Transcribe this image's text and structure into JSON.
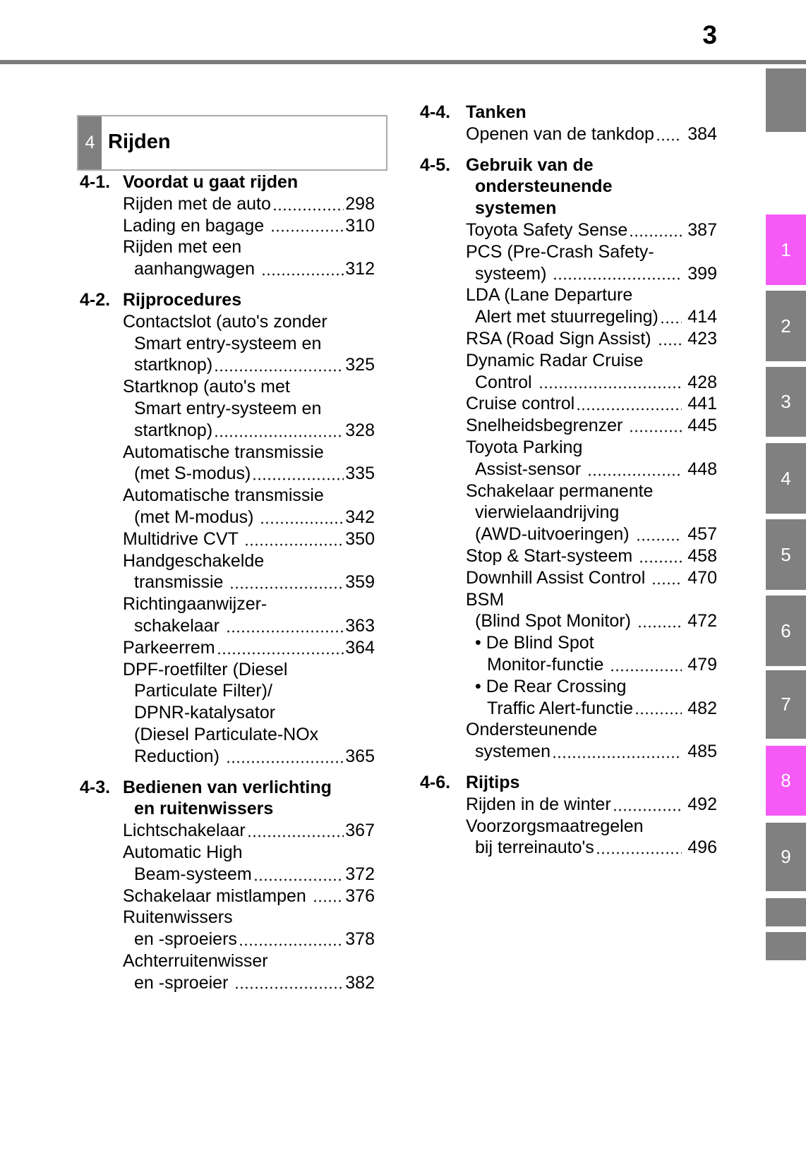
{
  "page": {
    "number": "3"
  },
  "chapter": {
    "number": "4",
    "title": "Rijden"
  },
  "colors": {
    "tab_gray": "#808080",
    "tab_pink": "#f65af6",
    "rule_gray": "#7b7b7b"
  },
  "toc": {
    "left_column": {
      "lines": [
        {
          "type": "header",
          "num": "4-1.",
          "text": "Voordat u gaat rijden"
        },
        {
          "type": "entry",
          "text": "Rijden met de auto",
          "page": "298"
        },
        {
          "type": "entry",
          "text": "Lading en bagage ",
          "page": "310"
        },
        {
          "type": "entry",
          "text": "Rijden met een"
        },
        {
          "type": "wrap",
          "text": "aanhangwagen ",
          "page": "312"
        },
        {
          "type": "header",
          "num": "4-2.",
          "text": "Rijprocedures",
          "gap": true
        },
        {
          "type": "entry",
          "text": "Contactslot (auto's zonder"
        },
        {
          "type": "wrap",
          "text": "Smart entry-systeem en"
        },
        {
          "type": "wrap",
          "text": "startknop)",
          "page": "325"
        },
        {
          "type": "entry",
          "text": "Startknop (auto's met"
        },
        {
          "type": "wrap",
          "text": "Smart entry-systeem en"
        },
        {
          "type": "wrap",
          "text": "startknop)",
          "page": "328"
        },
        {
          "type": "entry",
          "text": "Automatische transmissie"
        },
        {
          "type": "wrap",
          "text": "(met S-modus)",
          "page": "335"
        },
        {
          "type": "entry",
          "text": "Automatische transmissie"
        },
        {
          "type": "wrap",
          "text": "(met M-modus) ",
          "page": "342"
        },
        {
          "type": "entry",
          "text": "Multidrive CVT ",
          "page": "350"
        },
        {
          "type": "entry",
          "text": "Handgeschakelde"
        },
        {
          "type": "wrap",
          "text": "transmissie ",
          "page": "359"
        },
        {
          "type": "entry",
          "text": "Richtingaanwijzer-"
        },
        {
          "type": "wrap",
          "text": "schakelaar ",
          "page": "363"
        },
        {
          "type": "entry",
          "text": "Parkeerrem",
          "page": "364"
        },
        {
          "type": "entry",
          "text": "DPF-roetfilter (Diesel"
        },
        {
          "type": "wrap",
          "text": "Particulate Filter)/"
        },
        {
          "type": "wrap",
          "text": "DPNR-katalysator"
        },
        {
          "type": "wrap",
          "text": "(Diesel Particulate-NOx"
        },
        {
          "type": "wrap",
          "text": "Reduction) ",
          "page": "365"
        },
        {
          "type": "header",
          "num": "4-3.",
          "text": "Bedienen van verlichting",
          "gap": true
        },
        {
          "type": "hwrap",
          "text": "en ruitenwissers"
        },
        {
          "type": "entry",
          "text": "Lichtschakelaar",
          "page": "367"
        },
        {
          "type": "entry",
          "text": "Automatic High"
        },
        {
          "type": "wrap",
          "text": "Beam-systeem",
          "page": "372"
        },
        {
          "type": "entry",
          "text": "Schakelaar mistlampen ",
          "page": "376"
        },
        {
          "type": "entry",
          "text": "Ruitenwissers"
        },
        {
          "type": "wrap",
          "text": "en -sproeiers",
          "page": "378"
        },
        {
          "type": "entry",
          "text": "Achterruitenwisser"
        },
        {
          "type": "wrap",
          "text": "en -sproeier ",
          "page": "382"
        }
      ]
    },
    "right_column": {
      "lines": [
        {
          "type": "header",
          "num": "4-4.",
          "text": "Tanken"
        },
        {
          "type": "entry",
          "text": "Openen van de tankdop",
          "page": "384"
        },
        {
          "type": "header",
          "num": "4-5.",
          "text": "Gebruik van de",
          "gap": true
        },
        {
          "type": "hwrap",
          "text": "ondersteunende"
        },
        {
          "type": "hwrap",
          "text": "systemen"
        },
        {
          "type": "entry",
          "text": "Toyota Safety Sense",
          "page": "387"
        },
        {
          "type": "entry",
          "text": "PCS (Pre-Crash Safety-"
        },
        {
          "type": "wrap",
          "text": "systeem) ",
          "page": "399"
        },
        {
          "type": "entry",
          "text": "LDA (Lane Departure"
        },
        {
          "type": "wrap",
          "text": "Alert met stuurregeling)",
          "page": "414"
        },
        {
          "type": "entry",
          "text": "RSA (Road Sign Assist) ",
          "page": "423"
        },
        {
          "type": "entry",
          "text": "Dynamic Radar Cruise"
        },
        {
          "type": "wrap",
          "text": "Control ",
          "page": "428"
        },
        {
          "type": "entry",
          "text": "Cruise control",
          "page": "441"
        },
        {
          "type": "entry",
          "text": "Snelheidsbegrenzer ",
          "page": "445"
        },
        {
          "type": "entry",
          "text": "Toyota Parking"
        },
        {
          "type": "wrap",
          "text": "Assist-sensor ",
          "page": "448"
        },
        {
          "type": "entry",
          "text": "Schakelaar permanente"
        },
        {
          "type": "wrap",
          "text": "vierwielaandrijving"
        },
        {
          "type": "wrap",
          "text": "(AWD-uitvoeringen) ",
          "page": "457"
        },
        {
          "type": "entry",
          "text": "Stop & Start-systeem ",
          "page": "458"
        },
        {
          "type": "entry",
          "text": "Downhill Assist Control ",
          "page": "470"
        },
        {
          "type": "entry",
          "text": "BSM"
        },
        {
          "type": "wrap",
          "text": "(Blind Spot Monitor) ",
          "page": "472"
        },
        {
          "type": "bullet",
          "text": "• De Blind Spot"
        },
        {
          "type": "bwrap",
          "text": "Monitor-functie ",
          "page": "479"
        },
        {
          "type": "bullet",
          "text": "• De Rear Crossing"
        },
        {
          "type": "bwrap",
          "text": "Traffic Alert-functie",
          "page": "482"
        },
        {
          "type": "entry",
          "text": "Ondersteunende"
        },
        {
          "type": "wrap",
          "text": "systemen",
          "page": "485"
        },
        {
          "type": "header",
          "num": "4-6.",
          "text": "Rijtips",
          "gap": true
        },
        {
          "type": "entry",
          "text": "Rijden in de winter",
          "page": "492"
        },
        {
          "type": "entry",
          "text": "Voorzorgsmaatregelen"
        },
        {
          "type": "wrap",
          "text": "bij terreinauto's",
          "page": "496"
        }
      ]
    }
  },
  "side_tabs": {
    "items": [
      {
        "label": "",
        "style": "gray"
      },
      {
        "label": "1",
        "style": "pink"
      },
      {
        "label": "2",
        "style": "gray"
      },
      {
        "label": "3",
        "style": "gray"
      },
      {
        "label": "4",
        "style": "gray"
      },
      {
        "label": "5",
        "style": "gray"
      },
      {
        "label": "6",
        "style": "gray"
      },
      {
        "label": "7",
        "style": "gray"
      },
      {
        "label": "8",
        "style": "pink"
      },
      {
        "label": "9",
        "style": "gray"
      },
      {
        "label": "",
        "style": "gray"
      },
      {
        "label": "",
        "style": "gray"
      }
    ]
  }
}
